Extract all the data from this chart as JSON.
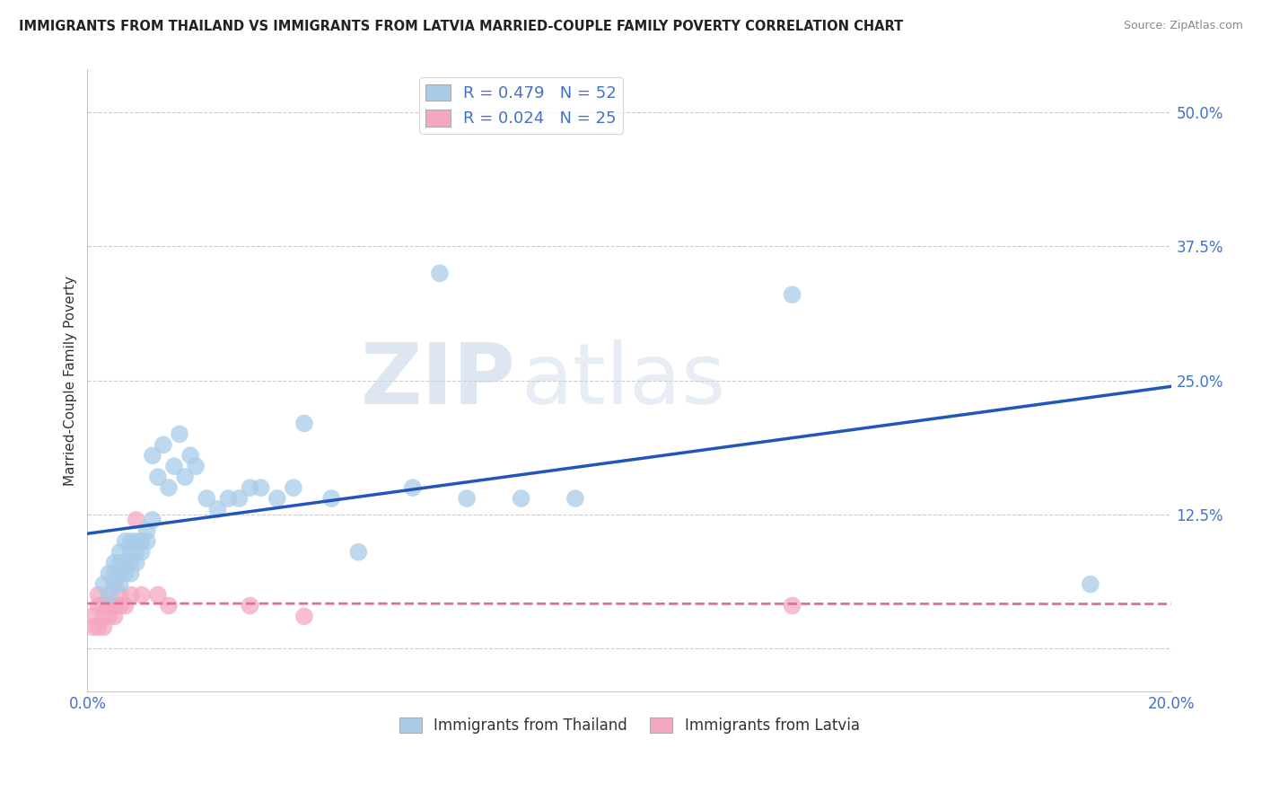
{
  "title": "IMMIGRANTS FROM THAILAND VS IMMIGRANTS FROM LATVIA MARRIED-COUPLE FAMILY POVERTY CORRELATION CHART",
  "source": "Source: ZipAtlas.com",
  "ylabel": "Married-Couple Family Poverty",
  "xlim": [
    0.0,
    0.2
  ],
  "ylim": [
    -0.04,
    0.54
  ],
  "color_thailand": "#a8cce8",
  "color_latvia": "#f4a8c0",
  "line_color_thailand": "#2255bb",
  "line_color_latvia": "#e07090",
  "background_color": "#ffffff",
  "grid_color": "#cccccc",
  "watermark_zip": "ZIP",
  "watermark_atlas": "atlas",
  "thailand_x": [
    0.003,
    0.004,
    0.004,
    0.005,
    0.005,
    0.005,
    0.006,
    0.006,
    0.006,
    0.006,
    0.007,
    0.007,
    0.007,
    0.008,
    0.008,
    0.008,
    0.008,
    0.009,
    0.009,
    0.009,
    0.01,
    0.01,
    0.011,
    0.011,
    0.012,
    0.012,
    0.013,
    0.014,
    0.015,
    0.016,
    0.017,
    0.018,
    0.019,
    0.02,
    0.022,
    0.024,
    0.026,
    0.028,
    0.03,
    0.032,
    0.035,
    0.038,
    0.04,
    0.045,
    0.05,
    0.06,
    0.065,
    0.07,
    0.08,
    0.09,
    0.13,
    0.185
  ],
  "thailand_y": [
    0.06,
    0.05,
    0.07,
    0.06,
    0.07,
    0.08,
    0.06,
    0.07,
    0.08,
    0.09,
    0.07,
    0.08,
    0.1,
    0.07,
    0.08,
    0.09,
    0.1,
    0.08,
    0.09,
    0.1,
    0.09,
    0.1,
    0.1,
    0.11,
    0.12,
    0.18,
    0.16,
    0.19,
    0.15,
    0.17,
    0.2,
    0.16,
    0.18,
    0.17,
    0.14,
    0.13,
    0.14,
    0.14,
    0.15,
    0.15,
    0.14,
    0.15,
    0.21,
    0.14,
    0.09,
    0.15,
    0.35,
    0.14,
    0.14,
    0.14,
    0.33,
    0.06
  ],
  "latvia_x": [
    0.001,
    0.001,
    0.002,
    0.002,
    0.002,
    0.003,
    0.003,
    0.003,
    0.004,
    0.004,
    0.004,
    0.005,
    0.005,
    0.005,
    0.006,
    0.006,
    0.007,
    0.008,
    0.009,
    0.01,
    0.013,
    0.015,
    0.03,
    0.04,
    0.13
  ],
  "latvia_y": [
    0.02,
    0.03,
    0.02,
    0.04,
    0.05,
    0.02,
    0.03,
    0.04,
    0.03,
    0.04,
    0.05,
    0.03,
    0.04,
    0.06,
    0.04,
    0.05,
    0.04,
    0.05,
    0.12,
    0.05,
    0.05,
    0.04,
    0.04,
    0.03,
    0.04
  ]
}
